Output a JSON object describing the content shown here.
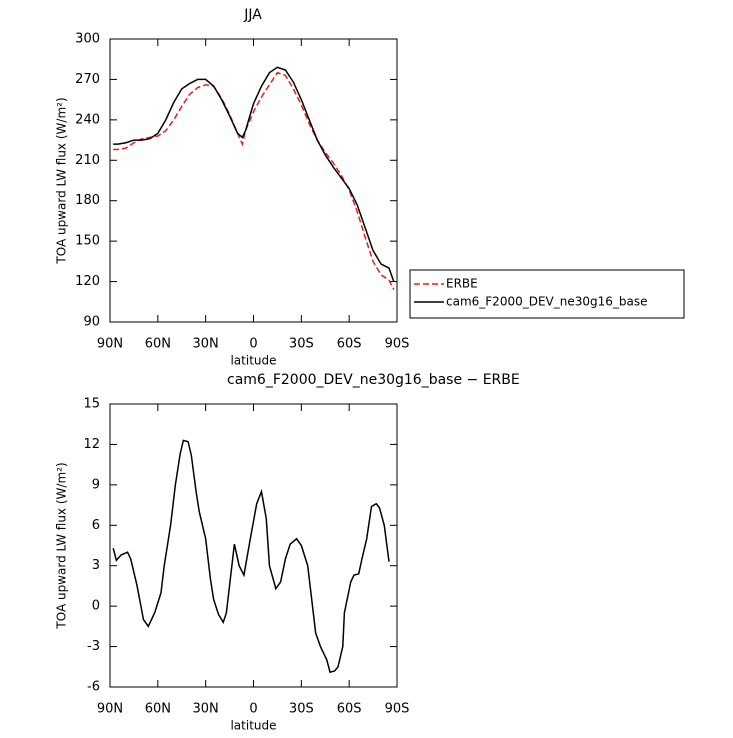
{
  "chart_data": [
    {
      "type": "line",
      "title": "JJA",
      "x_label": "latitude",
      "y_label": "TOA upward LW flux (W/m²)",
      "x": [
        88,
        85,
        80,
        75,
        70,
        65,
        60,
        55,
        50,
        45,
        40,
        35,
        30,
        25,
        20,
        15,
        10,
        7,
        5,
        0,
        -5,
        -10,
        -15,
        -20,
        -25,
        -30,
        -35,
        -40,
        -45,
        -50,
        -55,
        -60,
        -65,
        -70,
        -75,
        -80,
        -85,
        -88
      ],
      "series": [
        {
          "name": "ERBE",
          "color": "#e0201b",
          "dash": true,
          "values": [
            218,
            218,
            219,
            223,
            226,
            227,
            228,
            232,
            240,
            250,
            259,
            264,
            266,
            265,
            256,
            244,
            230,
            222,
            232,
            246,
            257,
            266,
            275,
            273,
            263,
            251,
            237,
            225,
            216,
            208,
            199,
            188,
            172,
            153,
            135,
            125,
            121,
            114
          ]
        },
        {
          "name": "cam6_F2000_DEV_ne30g16_base",
          "color": "#000000",
          "dash": false,
          "values": [
            222,
            222,
            223,
            225,
            225,
            226,
            230,
            240,
            253,
            263,
            267,
            270,
            270,
            265,
            255,
            243,
            230,
            227,
            232,
            252,
            265,
            275,
            279,
            277,
            268,
            255,
            240,
            225,
            214,
            205,
            197,
            189,
            177,
            160,
            143,
            133,
            130,
            120
          ]
        }
      ],
      "xlim": [
        90,
        -90
      ],
      "xticks": [
        {
          "value": 90,
          "label": "90N"
        },
        {
          "value": 60,
          "label": "60N"
        },
        {
          "value": 30,
          "label": "30N"
        },
        0,
        {
          "value": -30,
          "label": "30S"
        },
        {
          "value": -60,
          "label": "60S"
        },
        {
          "value": -90,
          "label": "90S"
        }
      ],
      "ylim": [
        90,
        300
      ],
      "yticks": [
        90,
        120,
        150,
        180,
        210,
        240,
        270,
        300
      ],
      "legend": "right"
    },
    {
      "type": "line",
      "title": "cam6_F2000_DEV_ne30g16_base − ERBE",
      "x_label": "latitude",
      "y_label": "TOA upward LW flux (W/m²)",
      "x": [
        88,
        86,
        83,
        79,
        77,
        73,
        69,
        66,
        62,
        58,
        56,
        52,
        49,
        46,
        44,
        41,
        39,
        36,
        34,
        30,
        27,
        25,
        22,
        19,
        17,
        12,
        9,
        6,
        2,
        -2,
        -5,
        -8,
        -10,
        -14,
        -17,
        -20,
        -23,
        -27,
        -30,
        -34,
        -37,
        -39,
        -42,
        -46,
        -48,
        -51,
        -53,
        -56,
        -57,
        -61,
        -63,
        -66,
        -68,
        -71,
        -74,
        -77,
        -79,
        -82,
        -85
      ],
      "series": [
        {
          "name": "cam6_F2000_DEV_ne30g16_base − ERBE",
          "color": "#000000",
          "dash": false,
          "values": [
            4.3,
            3.4,
            3.8,
            4.0,
            3.5,
            1.5,
            -1.0,
            -1.5,
            -0.5,
            1.0,
            3.0,
            6.0,
            9.0,
            11.3,
            12.3,
            12.2,
            11.2,
            8.5,
            7.0,
            5.0,
            2.0,
            0.5,
            -0.6,
            -1.2,
            -0.5,
            4.6,
            3.0,
            2.3,
            5.0,
            7.6,
            8.5,
            6.5,
            3.0,
            1.3,
            1.8,
            3.5,
            4.6,
            5.0,
            4.5,
            3.0,
            0.0,
            -2.0,
            -3.0,
            -4.0,
            -4.9,
            -4.8,
            -4.5,
            -3.0,
            -0.5,
            1.8,
            2.3,
            2.4,
            3.5,
            5.0,
            7.4,
            7.6,
            7.3,
            6.0,
            3.3
          ]
        }
      ],
      "xlim": [
        90,
        -90
      ],
      "xticks": [
        {
          "value": 90,
          "label": "90N"
        },
        {
          "value": 60,
          "label": "60N"
        },
        {
          "value": 30,
          "label": "30N"
        },
        0,
        {
          "value": -30,
          "label": "30S"
        },
        {
          "value": -60,
          "label": "60S"
        },
        {
          "value": -90,
          "label": "90S"
        }
      ],
      "ylim": [
        -6,
        15
      ],
      "yticks": [
        -6,
        -3,
        0,
        3,
        6,
        9,
        12,
        15
      ]
    }
  ]
}
